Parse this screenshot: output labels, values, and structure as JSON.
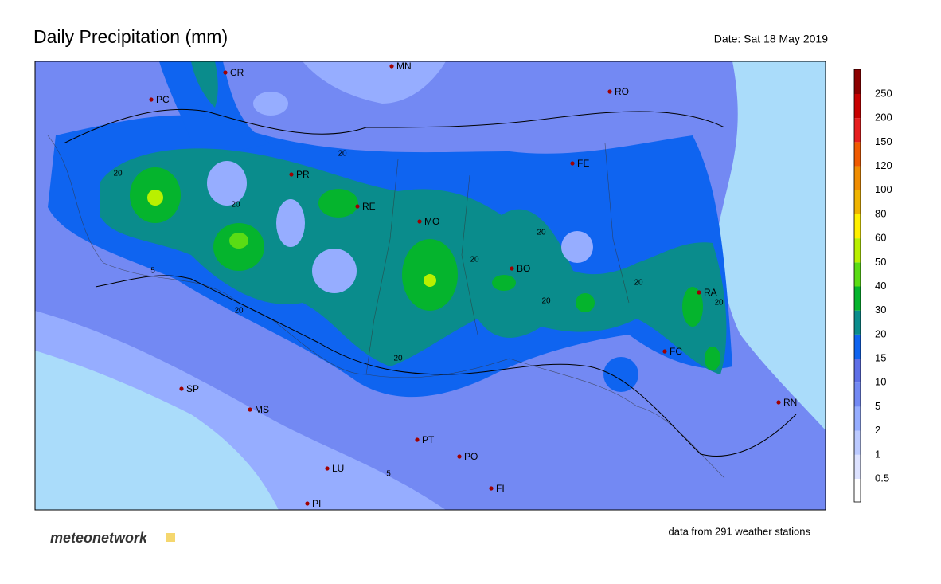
{
  "header": {
    "title": "Daily Precipitation (mm)",
    "date": "Date: Sat 18 May 2019"
  },
  "map": {
    "cities": [
      "CR",
      "MN",
      "PC",
      "RO",
      "PR",
      "FE",
      "RE",
      "MO",
      "BO",
      "RA",
      "FC",
      "RN",
      "SP",
      "MS",
      "PT",
      "PO",
      "LU",
      "FI",
      "PI"
    ],
    "contour_labels": [
      20,
      20,
      20,
      20,
      20,
      20,
      20,
      20,
      20,
      20,
      5,
      5
    ]
  },
  "legend": {
    "levels": [
      0.5,
      1,
      2,
      5,
      10,
      15,
      20,
      30,
      40,
      50,
      60,
      80,
      100,
      120,
      150,
      200,
      250
    ],
    "colors": [
      "#ffffff",
      "#dde2ff",
      "#bccaff",
      "#96adff",
      "#7389f3",
      "#5e6fe6",
      "#0f64f0",
      "#0a8c8c",
      "#05b42d",
      "#5adc14",
      "#b9f000",
      "#fff000",
      "#f0b400",
      "#f08c00",
      "#f05a00",
      "#e61e1e",
      "#c80000",
      "#8c0000"
    ]
  },
  "footer": {
    "brand": "meteonetwork",
    "note": "data from 291 weather stations"
  }
}
